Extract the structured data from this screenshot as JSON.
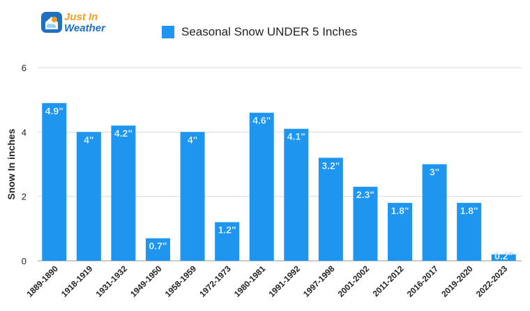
{
  "logo": {
    "line1": "Just In",
    "line2": "Weather",
    "icon": "weather-house-icon"
  },
  "colors": {
    "bar": "#1e96f0",
    "grid": "#d9d9d9",
    "axis_text": "#222222",
    "label_text": "#ffffff"
  },
  "chart_data": {
    "type": "bar",
    "title": "",
    "xlabel": "",
    "ylabel": "Snow In inches",
    "ylim": [
      0,
      6
    ],
    "yticks": [
      "0",
      "2",
      "4",
      "6"
    ],
    "grid": true,
    "legend_position": "top",
    "categories": [
      "1889-1890",
      "1918-1919",
      "1931-1932",
      "1949-1950",
      "1958-1959",
      "1972-1973",
      "1980-1981",
      "1991-1992",
      "1997-1998",
      "2001-2002",
      "2011-2012",
      "2016-2017",
      "2019-2020",
      "2022-2023"
    ],
    "series": [
      {
        "name": "Seasonal Snow UNDER 5 Inches",
        "values": [
          4.9,
          4,
          4.2,
          0.7,
          4,
          1.2,
          4.6,
          4.1,
          3.2,
          2.3,
          1.8,
          3,
          1.8,
          0.2
        ],
        "labels": [
          "4.9\"",
          "4\"",
          "4.2\"",
          "0.7\"",
          "4\"",
          "1.2\"",
          "4.6\"",
          "4.1\"",
          "3.2\"",
          "2.3\"",
          "1.8\"",
          "3\"",
          "1.8\"",
          "0.2\""
        ]
      }
    ]
  }
}
